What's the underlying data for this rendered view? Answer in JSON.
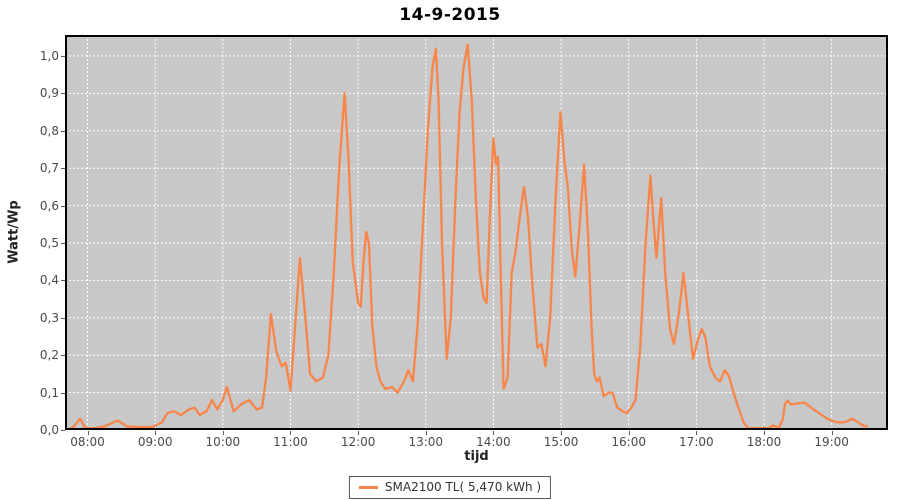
{
  "title": "14-9-2015",
  "legend": {
    "label": "SMA2100 TL( 5,470 kWh )"
  },
  "colors": {
    "background": "#FFFFFF",
    "plot_background": "#C8C8C8",
    "gridline": "#FFFFFF",
    "plot_border": "#000000",
    "series_line": "#F8854A",
    "tick_label": "#4A4A4A",
    "axis_label": "#222222",
    "title_text": "#000000"
  },
  "chart_data": {
    "type": "line",
    "title": "14-9-2015",
    "xlabel": "tijd",
    "ylabel": "Watt/Wp",
    "xlim": [
      7.667,
      19.833
    ],
    "ylim": [
      0,
      1.056
    ],
    "grid": true,
    "grid_style": "white-dashed",
    "legend_position": "bottom-center",
    "x_ticks": [
      {
        "value": 8,
        "label": "08:00"
      },
      {
        "value": 9,
        "label": "09:00"
      },
      {
        "value": 10,
        "label": "10:00"
      },
      {
        "value": 11,
        "label": "11:00"
      },
      {
        "value": 12,
        "label": "12:00"
      },
      {
        "value": 13,
        "label": "13:00"
      },
      {
        "value": 14,
        "label": "14:00"
      },
      {
        "value": 15,
        "label": "15:00"
      },
      {
        "value": 16,
        "label": "16:00"
      },
      {
        "value": 17,
        "label": "17:00"
      },
      {
        "value": 18,
        "label": "18:00"
      },
      {
        "value": 19,
        "label": "19:00"
      }
    ],
    "y_ticks": [
      {
        "value": 0.0,
        "label": "0,0"
      },
      {
        "value": 0.1,
        "label": "0,1"
      },
      {
        "value": 0.2,
        "label": "0,2"
      },
      {
        "value": 0.3,
        "label": "0,3"
      },
      {
        "value": 0.4,
        "label": "0,4"
      },
      {
        "value": 0.5,
        "label": "0,5"
      },
      {
        "value": 0.6,
        "label": "0,6"
      },
      {
        "value": 0.7,
        "label": "0,7"
      },
      {
        "value": 0.8,
        "label": "0,8"
      },
      {
        "value": 0.9,
        "label": "0,9"
      },
      {
        "value": 1.0,
        "label": "1,0"
      }
    ],
    "series": [
      {
        "name": "SMA2100 TL( 5,470 kWh )",
        "color": "#F8854A",
        "points": [
          [
            7.72,
            0.0
          ],
          [
            7.8,
            0.01
          ],
          [
            7.89,
            0.03
          ],
          [
            7.97,
            0.005
          ],
          [
            8.1,
            0.005
          ],
          [
            8.25,
            0.01
          ],
          [
            8.45,
            0.025
          ],
          [
            8.58,
            0.01
          ],
          [
            8.75,
            0.008
          ],
          [
            8.95,
            0.008
          ],
          [
            9.1,
            0.02
          ],
          [
            9.18,
            0.045
          ],
          [
            9.28,
            0.05
          ],
          [
            9.38,
            0.04
          ],
          [
            9.5,
            0.055
          ],
          [
            9.58,
            0.06
          ],
          [
            9.66,
            0.04
          ],
          [
            9.76,
            0.05
          ],
          [
            9.84,
            0.08
          ],
          [
            9.92,
            0.055
          ],
          [
            10.0,
            0.08
          ],
          [
            10.06,
            0.115
          ],
          [
            10.16,
            0.05
          ],
          [
            10.28,
            0.07
          ],
          [
            10.39,
            0.08
          ],
          [
            10.5,
            0.055
          ],
          [
            10.58,
            0.06
          ],
          [
            10.64,
            0.14
          ],
          [
            10.71,
            0.31
          ],
          [
            10.79,
            0.21
          ],
          [
            10.87,
            0.17
          ],
          [
            10.93,
            0.18
          ],
          [
            11.0,
            0.105
          ],
          [
            11.07,
            0.28
          ],
          [
            11.14,
            0.46
          ],
          [
            11.21,
            0.32
          ],
          [
            11.29,
            0.15
          ],
          [
            11.38,
            0.13
          ],
          [
            11.48,
            0.14
          ],
          [
            11.56,
            0.2
          ],
          [
            11.64,
            0.42
          ],
          [
            11.72,
            0.7
          ],
          [
            11.8,
            0.9
          ],
          [
            11.86,
            0.72
          ],
          [
            11.92,
            0.45
          ],
          [
            12.0,
            0.34
          ],
          [
            12.04,
            0.33
          ],
          [
            12.08,
            0.45
          ],
          [
            12.12,
            0.53
          ],
          [
            12.16,
            0.5
          ],
          [
            12.21,
            0.28
          ],
          [
            12.27,
            0.17
          ],
          [
            12.33,
            0.13
          ],
          [
            12.4,
            0.11
          ],
          [
            12.5,
            0.115
          ],
          [
            12.58,
            0.1
          ],
          [
            12.68,
            0.13
          ],
          [
            12.74,
            0.16
          ],
          [
            12.81,
            0.13
          ],
          [
            12.88,
            0.28
          ],
          [
            12.95,
            0.52
          ],
          [
            13.03,
            0.8
          ],
          [
            13.1,
            0.97
          ],
          [
            13.15,
            1.02
          ],
          [
            13.19,
            0.88
          ],
          [
            13.24,
            0.5
          ],
          [
            13.31,
            0.19
          ],
          [
            13.37,
            0.3
          ],
          [
            13.44,
            0.62
          ],
          [
            13.5,
            0.85
          ],
          [
            13.56,
            0.97
          ],
          [
            13.62,
            1.03
          ],
          [
            13.68,
            0.88
          ],
          [
            13.74,
            0.62
          ],
          [
            13.8,
            0.42
          ],
          [
            13.86,
            0.35
          ],
          [
            13.9,
            0.34
          ],
          [
            13.95,
            0.58
          ],
          [
            14.0,
            0.78
          ],
          [
            14.04,
            0.71
          ],
          [
            14.07,
            0.73
          ],
          [
            14.11,
            0.4
          ],
          [
            14.15,
            0.11
          ],
          [
            14.21,
            0.14
          ],
          [
            14.27,
            0.42
          ],
          [
            14.33,
            0.48
          ],
          [
            14.39,
            0.57
          ],
          [
            14.45,
            0.65
          ],
          [
            14.51,
            0.57
          ],
          [
            14.58,
            0.38
          ],
          [
            14.65,
            0.22
          ],
          [
            14.71,
            0.23
          ],
          [
            14.77,
            0.17
          ],
          [
            14.84,
            0.3
          ],
          [
            14.92,
            0.62
          ],
          [
            14.99,
            0.85
          ],
          [
            15.05,
            0.72
          ],
          [
            15.1,
            0.65
          ],
          [
            15.16,
            0.48
          ],
          [
            15.21,
            0.41
          ],
          [
            15.28,
            0.56
          ],
          [
            15.34,
            0.71
          ],
          [
            15.4,
            0.52
          ],
          [
            15.45,
            0.28
          ],
          [
            15.49,
            0.15
          ],
          [
            15.53,
            0.13
          ],
          [
            15.57,
            0.14
          ],
          [
            15.63,
            0.09
          ],
          [
            15.7,
            0.1
          ],
          [
            15.76,
            0.1
          ],
          [
            15.83,
            0.06
          ],
          [
            15.91,
            0.05
          ],
          [
            15.97,
            0.045
          ],
          [
            16.04,
            0.06
          ],
          [
            16.1,
            0.08
          ],
          [
            16.17,
            0.22
          ],
          [
            16.25,
            0.5
          ],
          [
            16.32,
            0.68
          ],
          [
            16.37,
            0.55
          ],
          [
            16.41,
            0.46
          ],
          [
            16.48,
            0.62
          ],
          [
            16.54,
            0.42
          ],
          [
            16.61,
            0.27
          ],
          [
            16.67,
            0.23
          ],
          [
            16.74,
            0.31
          ],
          [
            16.81,
            0.42
          ],
          [
            16.87,
            0.32
          ],
          [
            16.95,
            0.19
          ],
          [
            17.02,
            0.24
          ],
          [
            17.08,
            0.27
          ],
          [
            17.13,
            0.25
          ],
          [
            17.2,
            0.17
          ],
          [
            17.28,
            0.14
          ],
          [
            17.35,
            0.13
          ],
          [
            17.42,
            0.16
          ],
          [
            17.48,
            0.145
          ],
          [
            17.55,
            0.1
          ],
          [
            17.62,
            0.06
          ],
          [
            17.7,
            0.02
          ],
          [
            17.76,
            0.005
          ],
          [
            17.9,
            0.005
          ],
          [
            18.05,
            0.005
          ],
          [
            18.14,
            0.012
          ],
          [
            18.22,
            0.006
          ],
          [
            18.28,
            0.03
          ],
          [
            18.31,
            0.07
          ],
          [
            18.35,
            0.078
          ],
          [
            18.4,
            0.068
          ],
          [
            18.46,
            0.07
          ],
          [
            18.53,
            0.072
          ],
          [
            18.6,
            0.073
          ],
          [
            18.66,
            0.065
          ],
          [
            18.73,
            0.055
          ],
          [
            18.8,
            0.047
          ],
          [
            18.88,
            0.037
          ],
          [
            18.96,
            0.028
          ],
          [
            19.05,
            0.022
          ],
          [
            19.13,
            0.02
          ],
          [
            19.21,
            0.022
          ],
          [
            19.3,
            0.03
          ],
          [
            19.38,
            0.022
          ],
          [
            19.45,
            0.013
          ],
          [
            19.52,
            0.01
          ]
        ]
      }
    ]
  }
}
